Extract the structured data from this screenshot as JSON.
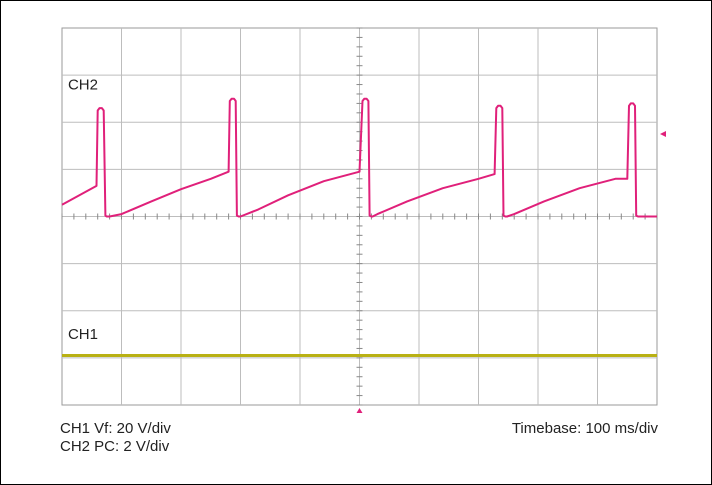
{
  "chart_data": {
    "type": "line",
    "grid": true,
    "divisions": {
      "x": 10,
      "y": 8
    },
    "xlim": [
      0,
      1000
    ],
    "ylim": [
      -4,
      4
    ],
    "x_unit": "ms",
    "series": [
      {
        "name": "CH2",
        "color": "#e0207a",
        "x": [
          0,
          58,
          60,
          63,
          67,
          70,
          73,
          75,
          80,
          100,
          150,
          200,
          250,
          280,
          282,
          285,
          289,
          292,
          294,
          297,
          300,
          330,
          380,
          440,
          500,
          505,
          508,
          512,
          515,
          517,
          520,
          522,
          530,
          580,
          640,
          700,
          727,
          730,
          733,
          737,
          740,
          742,
          745,
          748,
          760,
          810,
          870,
          930,
          950,
          953,
          956,
          960,
          963,
          965,
          968,
          970,
          990,
          1000
        ],
        "y": [
          0.25,
          0.65,
          2.25,
          2.3,
          2.3,
          2.25,
          0.02,
          0.0,
          0.0,
          0.05,
          0.32,
          0.58,
          0.8,
          0.95,
          2.45,
          2.5,
          2.5,
          2.45,
          0.02,
          0.0,
          0.0,
          0.15,
          0.45,
          0.75,
          0.95,
          2.45,
          2.5,
          2.5,
          2.45,
          0.02,
          0.0,
          0.0,
          0.05,
          0.32,
          0.6,
          0.8,
          0.9,
          2.3,
          2.35,
          2.35,
          2.3,
          0.02,
          0.0,
          0.0,
          0.05,
          0.32,
          0.6,
          0.8,
          0.8,
          2.35,
          2.4,
          2.4,
          2.35,
          0.02,
          0.0,
          0.0,
          0.0,
          0.0
        ]
      },
      {
        "name": "CH1",
        "color": "#b9b114",
        "x": [
          0,
          1000
        ],
        "y": [
          -2.95,
          -2.95
        ]
      }
    ],
    "channel_labels": [
      {
        "text": "CH2",
        "x": 10,
        "y": 2.7
      },
      {
        "text": "CH1",
        "x": 10,
        "y": -2.6
      }
    ],
    "trigger_marker_level": 1.75,
    "trigger_marker_time": 500
  },
  "captions": {
    "line1": "CH1 Vf: 20 V/div",
    "line2": "CH2 PC: 2 V/div",
    "timebase": "Timebase: 100 ms/div"
  }
}
